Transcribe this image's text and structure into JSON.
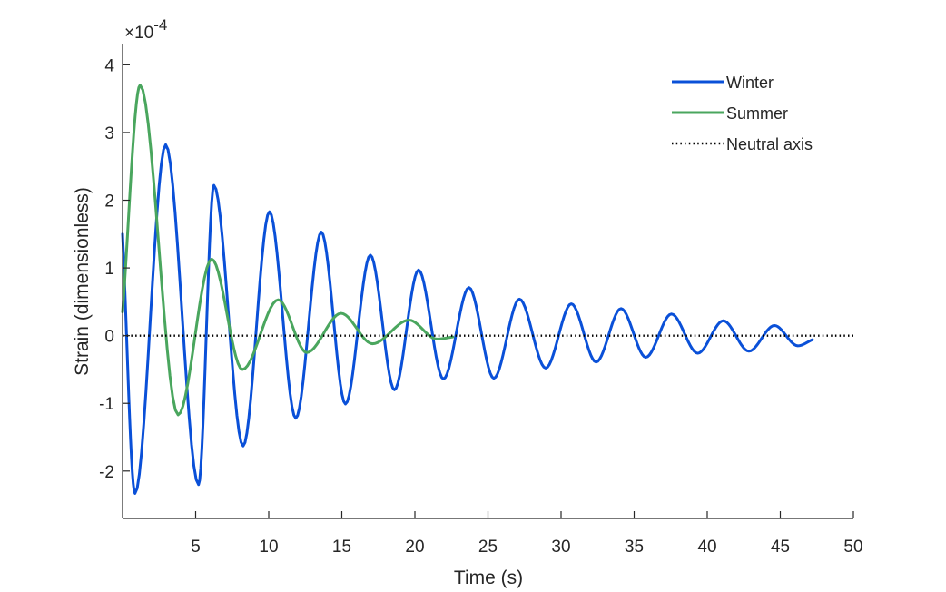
{
  "chart_data": {
    "type": "line",
    "xlabel": "Time (s)",
    "ylabel": "Strain (dimensionless)",
    "y_multiplier_label": "×10",
    "y_multiplier_exponent": "-4",
    "xlim": [
      0,
      50
    ],
    "ylim": [
      -2.7,
      4.3
    ],
    "x_ticks": [
      5,
      10,
      15,
      20,
      25,
      30,
      35,
      40,
      45,
      50
    ],
    "y_ticks": [
      -2,
      -1,
      0,
      1,
      2,
      3,
      4
    ],
    "grid": false,
    "legend_position": "top-right",
    "series": [
      {
        "name": "Winter",
        "color": "#0a50d8",
        "style": "solid",
        "x": [
          0,
          0.85,
          2.95,
          5.2,
          6.25,
          8.25,
          10.05,
          11.85,
          13.6,
          15.25,
          16.95,
          18.6,
          20.25,
          21.95,
          23.7,
          25.4,
          27.15,
          28.95,
          30.7,
          32.4,
          34.1,
          35.8,
          37.55,
          39.35,
          41.1,
          42.85,
          44.6,
          46.2,
          47.2
        ],
        "y": [
          1.5,
          -2.33,
          2.82,
          -2.2,
          2.22,
          -1.63,
          1.83,
          -1.22,
          1.53,
          -1.01,
          1.19,
          -0.8,
          0.97,
          -0.64,
          0.71,
          -0.63,
          0.54,
          -0.48,
          0.47,
          -0.39,
          0.4,
          -0.32,
          0.32,
          -0.26,
          0.22,
          -0.23,
          0.15,
          -0.15,
          -0.06
        ]
      },
      {
        "name": "Summer",
        "color": "#4aa65e",
        "style": "solid",
        "x": [
          0,
          1.2,
          3.8,
          6.1,
          8.2,
          10.65,
          12.6,
          14.95,
          17.1,
          19.6,
          21.5,
          22.6
        ],
        "y": [
          0.35,
          3.7,
          -1.17,
          1.13,
          -0.5,
          0.53,
          -0.25,
          0.33,
          -0.12,
          0.23,
          -0.05,
          -0.02
        ]
      },
      {
        "name": "Neutral axis",
        "color": "#000000",
        "style": "dotted",
        "x": [
          0,
          50
        ],
        "y": [
          0,
          0
        ]
      }
    ]
  }
}
